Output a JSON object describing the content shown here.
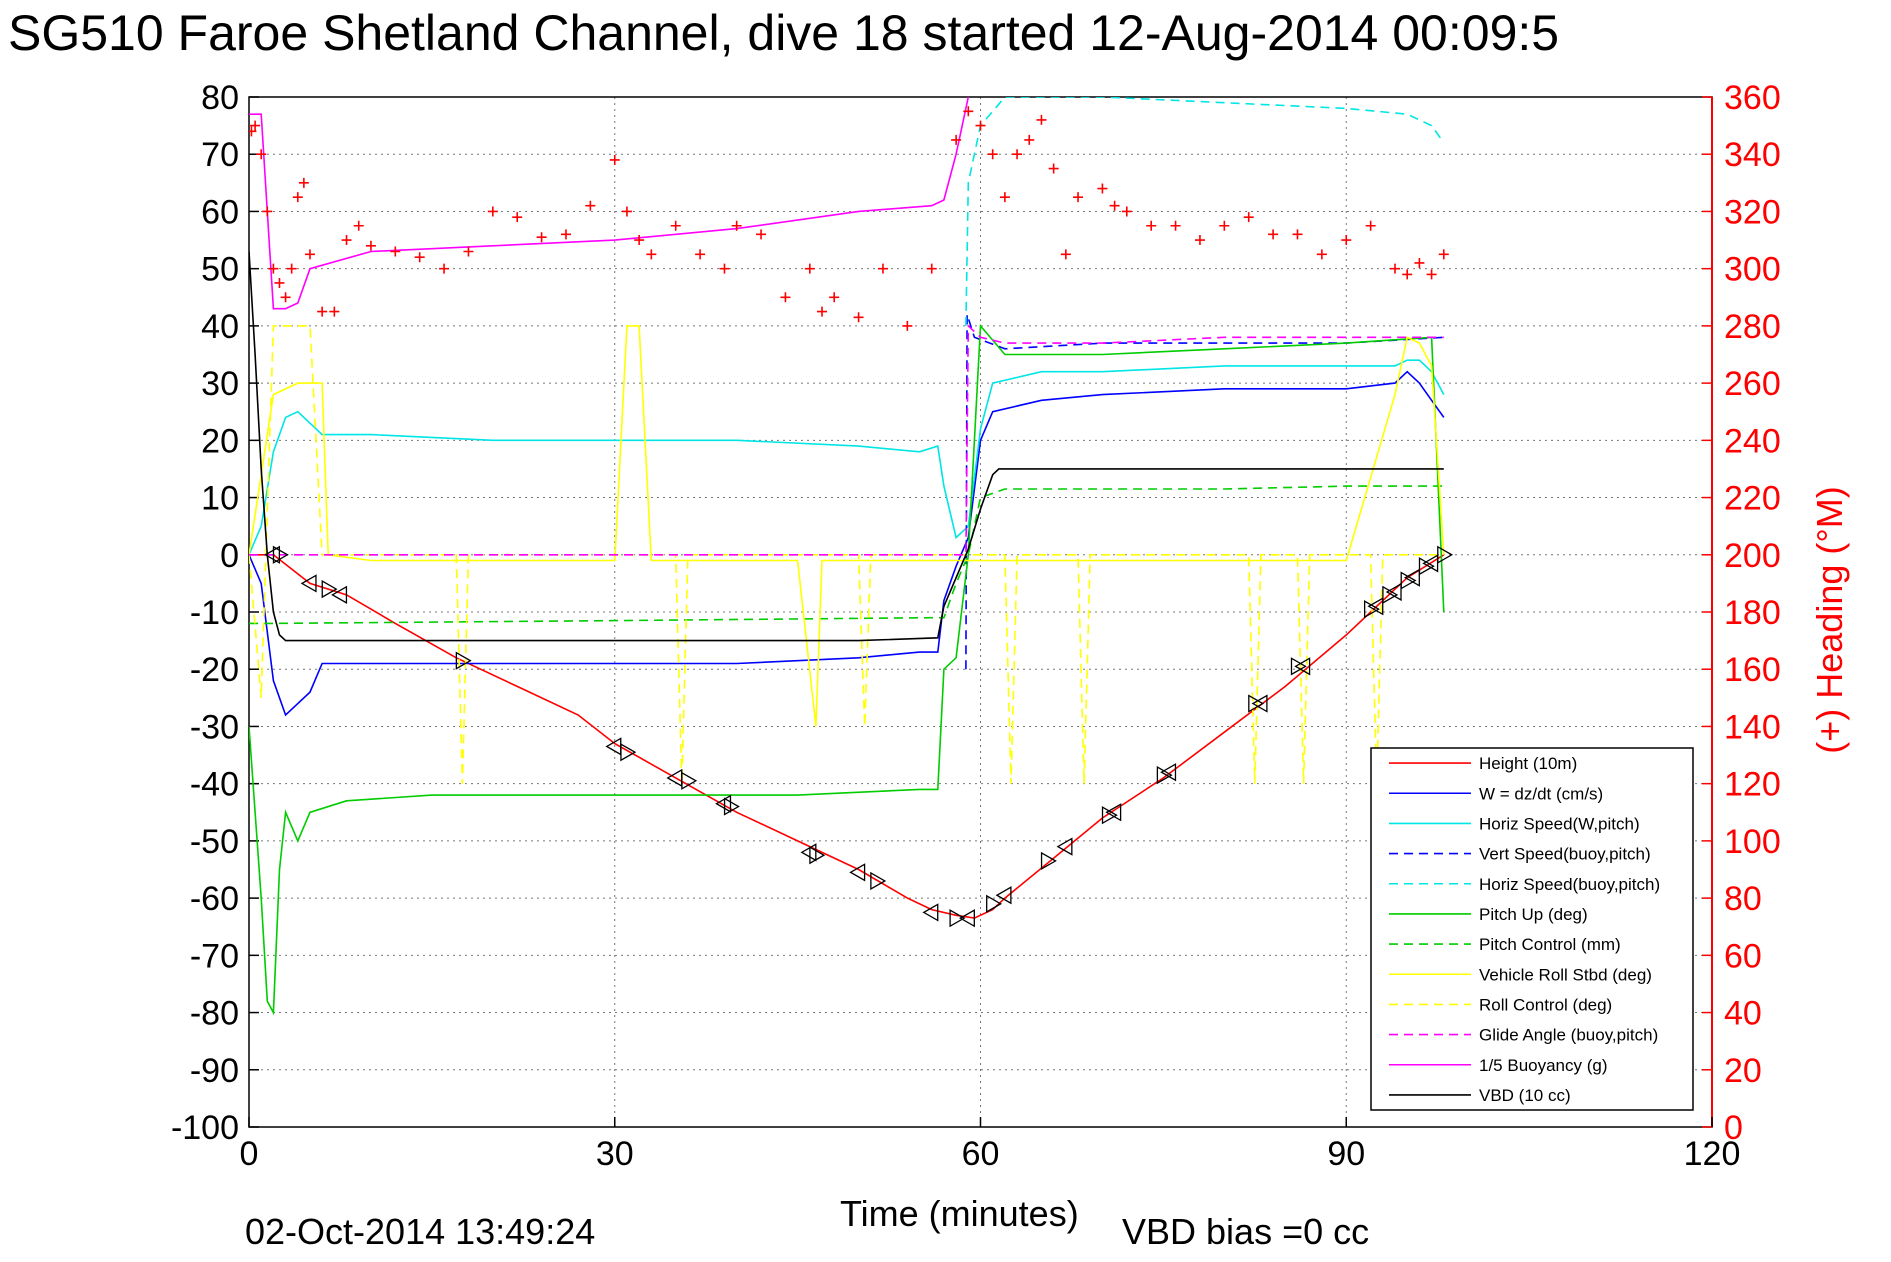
{
  "title": "SG510 Faroe Shetland Channel, dive 18 started 12-Aug-2014 00:09:5",
  "timestamp": "02-Oct-2014 13:49:24",
  "vbd_bias": "VBD bias =0 cc",
  "chart_data": {
    "type": "line",
    "xlabel": "Time (minutes)",
    "ylabel": "",
    "y2label": "(+) Heading (°M)",
    "xlim": [
      0,
      120
    ],
    "ylim": [
      -100,
      80
    ],
    "y2lim": [
      0,
      360
    ],
    "x_ticks": [
      0,
      30,
      60,
      90,
      120
    ],
    "y_ticks": [
      80,
      70,
      60,
      50,
      40,
      30,
      20,
      10,
      0,
      -10,
      -20,
      -30,
      -40,
      -50,
      -60,
      -70,
      -80,
      -90,
      -100
    ],
    "y2_ticks": [
      360,
      340,
      320,
      300,
      280,
      260,
      240,
      220,
      200,
      180,
      160,
      140,
      120,
      100,
      80,
      60,
      40,
      20,
      0
    ],
    "grid": true,
    "legend_position": "bottom-right",
    "series": [
      {
        "name": "Height (10m)",
        "color": "#ff0000",
        "style": "solid",
        "axis": "left",
        "x": [
          0,
          2,
          5,
          8,
          12,
          17,
          22,
          27,
          30,
          35,
          40,
          46,
          50,
          54,
          56,
          58,
          59.5,
          61,
          62,
          66,
          70,
          75,
          80,
          85,
          90,
          92,
          95,
          98
        ],
        "y": [
          0,
          0,
          -5,
          -7,
          -12,
          -18,
          -23,
          -28,
          -33,
          -39,
          -45,
          -51,
          -55,
          -60,
          -62,
          -63,
          -63.5,
          -62,
          -60,
          -53,
          -46,
          -39,
          -31,
          -23,
          -14,
          -10,
          -4,
          0
        ]
      },
      {
        "name": "W = dz/dt (cm/s)",
        "color": "#0000ff",
        "style": "solid",
        "axis": "left",
        "x": [
          0,
          1,
          2,
          3,
          4,
          5,
          6,
          10,
          20,
          30,
          40,
          50,
          55,
          56.5,
          57,
          58,
          59,
          60,
          61,
          65,
          70,
          80,
          90,
          94,
          95,
          96,
          97,
          98
        ],
        "y": [
          0,
          -5,
          -22,
          -28,
          -26,
          -24,
          -19,
          -19,
          -19,
          -19,
          -19,
          -18,
          -17,
          -17,
          -8,
          -2,
          3,
          20,
          25,
          27,
          28,
          29,
          29,
          30,
          32,
          30,
          27,
          24
        ]
      },
      {
        "name": "Horiz Speed(W,pitch)",
        "color": "#00e5e5",
        "style": "solid",
        "axis": "left",
        "x": [
          0,
          1,
          2,
          3,
          4,
          5,
          6,
          10,
          20,
          30,
          40,
          50,
          55,
          56.5,
          57,
          58,
          59,
          60,
          61,
          65,
          70,
          80,
          90,
          94,
          95,
          96,
          97,
          98
        ],
        "y": [
          0,
          5,
          18,
          24,
          25,
          23,
          21,
          21,
          20,
          20,
          20,
          19,
          18,
          19,
          12,
          3,
          5,
          22,
          30,
          32,
          32,
          33,
          33,
          33,
          34,
          34,
          32,
          28
        ]
      },
      {
        "name": "Vert Speed(buoy,pitch)",
        "color": "#0000ff",
        "style": "dashed",
        "axis": "left",
        "x": [
          58.8,
          58.9,
          59.5,
          62,
          70,
          80,
          90,
          98
        ],
        "y": [
          -20,
          42,
          38,
          36,
          37,
          37,
          37,
          38
        ]
      },
      {
        "name": "Horiz Speed(buoy,pitch)",
        "color": "#00e5e5",
        "style": "dashed",
        "axis": "left",
        "x": [
          58.8,
          59,
          60,
          62,
          70,
          80,
          90,
          95,
          97,
          98
        ],
        "y": [
          40,
          65,
          75,
          80,
          80,
          79,
          78,
          77,
          75,
          72
        ]
      },
      {
        "name": "Pitch Up (deg)",
        "color": "#00cc00",
        "style": "solid",
        "axis": "left",
        "x": [
          0,
          1,
          1.5,
          2,
          2.5,
          3,
          4,
          5,
          8,
          15,
          25,
          35,
          45,
          55,
          56.5,
          57,
          58,
          59,
          60,
          62,
          70,
          80,
          90,
          97,
          98
        ],
        "y": [
          -30,
          -60,
          -78,
          -80,
          -55,
          -45,
          -50,
          -45,
          -43,
          -42,
          -42,
          -42,
          -42,
          -41,
          -41,
          -20,
          -18,
          0,
          40,
          35,
          35,
          36,
          37,
          38,
          -10
        ]
      },
      {
        "name": "Pitch Control (mm)",
        "color": "#00cc00",
        "style": "dashed",
        "axis": "left",
        "x": [
          0,
          1,
          2,
          30,
          56,
          57,
          58,
          59,
          60,
          62,
          70,
          80,
          90,
          98
        ],
        "y": [
          -12,
          -12,
          -12,
          -11.5,
          -11,
          -11,
          -5,
          0,
          10,
          11.5,
          11.5,
          11.5,
          12,
          12
        ]
      },
      {
        "name": "Vehicle Roll Stbd (deg)",
        "color": "#ffff00",
        "style": "solid",
        "axis": "left",
        "x": [
          0,
          2,
          4,
          6,
          6.5,
          10,
          20,
          30,
          31,
          32,
          33,
          40,
          45,
          46.5,
          47,
          50,
          55,
          56,
          58,
          60,
          62,
          65,
          70,
          80,
          85,
          90,
          94,
          95,
          96,
          97,
          98
        ],
        "y": [
          0,
          28,
          30,
          30,
          0,
          -1,
          -1,
          -1,
          40,
          40,
          -1,
          -1,
          -1,
          -30,
          -1,
          -1,
          -1,
          -1,
          -1,
          -1,
          -1,
          -1,
          -1,
          -1,
          -1,
          -1,
          28,
          38,
          37,
          33,
          0
        ]
      },
      {
        "name": "Roll Control (deg)",
        "color": "#ffff00",
        "style": "dashed",
        "axis": "left",
        "x": [
          0,
          1,
          2,
          3,
          4,
          5,
          6,
          6.5,
          17,
          17.5,
          18,
          35,
          35.5,
          36,
          50,
          50.5,
          51,
          62,
          62.5,
          63,
          68,
          68.5,
          69,
          82,
          82.5,
          83,
          86,
          86.5,
          87,
          92,
          92.5,
          93,
          98
        ],
        "y": [
          0,
          -25,
          40,
          40,
          40,
          40,
          0,
          0,
          0,
          -40,
          0,
          0,
          -40,
          0,
          0,
          -30,
          0,
          0,
          -40,
          0,
          0,
          -40,
          0,
          0,
          -40,
          0,
          0,
          -40,
          0,
          0,
          -40,
          0,
          0
        ]
      },
      {
        "name": "Glide Angle (buoy,pitch)",
        "color": "#ff00ff",
        "style": "dashed",
        "axis": "left",
        "x": [
          0,
          30,
          58.8,
          59,
          60,
          62,
          70,
          80,
          90,
          98
        ],
        "y": [
          0,
          0,
          0,
          40,
          38,
          37,
          37,
          38,
          38,
          38
        ]
      },
      {
        "name": "1/5 Buoyancy (g)",
        "color": "#ff00ff",
        "style": "solid",
        "axis": "left",
        "x": [
          0,
          1,
          2,
          3,
          4,
          5,
          10,
          20,
          30,
          40,
          50,
          56,
          57,
          58,
          59
        ],
        "y": [
          77,
          77,
          43,
          43,
          44,
          50,
          53,
          54,
          55,
          57,
          60,
          61,
          62,
          70,
          80
        ]
      },
      {
        "name": "VBD (10 cc)",
        "color": "#000000",
        "style": "solid",
        "axis": "left",
        "x": [
          0,
          0.5,
          1,
          1.5,
          2,
          2.5,
          3,
          10,
          20,
          30,
          40,
          50,
          56.5,
          57,
          58,
          59,
          60,
          61,
          61.5,
          70,
          80,
          90,
          98
        ],
        "y": [
          53,
          35,
          15,
          0,
          -10,
          -14,
          -15,
          -15,
          -15,
          -15,
          -15,
          -15,
          -14.5,
          -9,
          -4,
          1,
          8,
          14,
          15,
          15,
          15,
          15,
          15
        ]
      }
    ],
    "heading": {
      "name": "(+) Heading",
      "color": "#ff0000",
      "marker": "+",
      "axis": "right",
      "x": [
        0.2,
        0.5,
        1,
        1.5,
        2,
        2.5,
        3,
        3.5,
        4,
        4.5,
        5,
        6,
        7,
        8,
        9,
        10,
        12,
        14,
        16,
        18,
        20,
        22,
        24,
        26,
        28,
        30,
        31,
        32,
        33,
        35,
        37,
        39,
        40,
        42,
        44,
        46,
        47,
        48,
        50,
        52,
        54,
        56,
        58,
        59,
        60,
        61,
        62,
        63,
        64,
        65,
        66,
        67,
        68,
        70,
        71,
        72,
        74,
        76,
        78,
        80,
        82,
        84,
        86,
        88,
        90,
        92,
        94,
        95,
        96,
        97,
        98
      ],
      "y": [
        348,
        350,
        340,
        320,
        300,
        295,
        290,
        300,
        325,
        330,
        305,
        285,
        285,
        310,
        315,
        308,
        306,
        304,
        300,
        306,
        320,
        318,
        311,
        312,
        322,
        338,
        320,
        310,
        305,
        315,
        305,
        300,
        315,
        312,
        290,
        300,
        285,
        290,
        283,
        300,
        280,
        300,
        345,
        355,
        350,
        340,
        325,
        340,
        345,
        352,
        335,
        305,
        325,
        328,
        322,
        320,
        315,
        315,
        310,
        315,
        318,
        312,
        312,
        305,
        310,
        315,
        300,
        298,
        302,
        298,
        305
      ]
    },
    "depth_markers": {
      "x": [
        2,
        2.5,
        5,
        6.5,
        7.5,
        17.5,
        30,
        31,
        35,
        36,
        39,
        39.5,
        46,
        46.5,
        50,
        51.5,
        56,
        58,
        59,
        61,
        62,
        65.5,
        67,
        70.5,
        71,
        75,
        75.5,
        82.5,
        83,
        86,
        86.5,
        92,
        92.5,
        93.5,
        94,
        95,
        95.5,
        96.5,
        97,
        98
      ],
      "y": [
        0,
        0,
        -5,
        -6,
        -7,
        -18.5,
        -33.5,
        -34.5,
        -39,
        -39.5,
        -43.5,
        -44,
        -52,
        -52.5,
        -55.5,
        -57,
        -62.5,
        -63.5,
        -63.5,
        -61,
        -59.5,
        -53.5,
        -51,
        -45.5,
        -45,
        -38.5,
        -38,
        -26,
        -26,
        -19.5,
        -19.5,
        -9.5,
        -9,
        -7,
        -6.5,
        -4.5,
        -4,
        -2,
        -1.5,
        0
      ]
    }
  }
}
